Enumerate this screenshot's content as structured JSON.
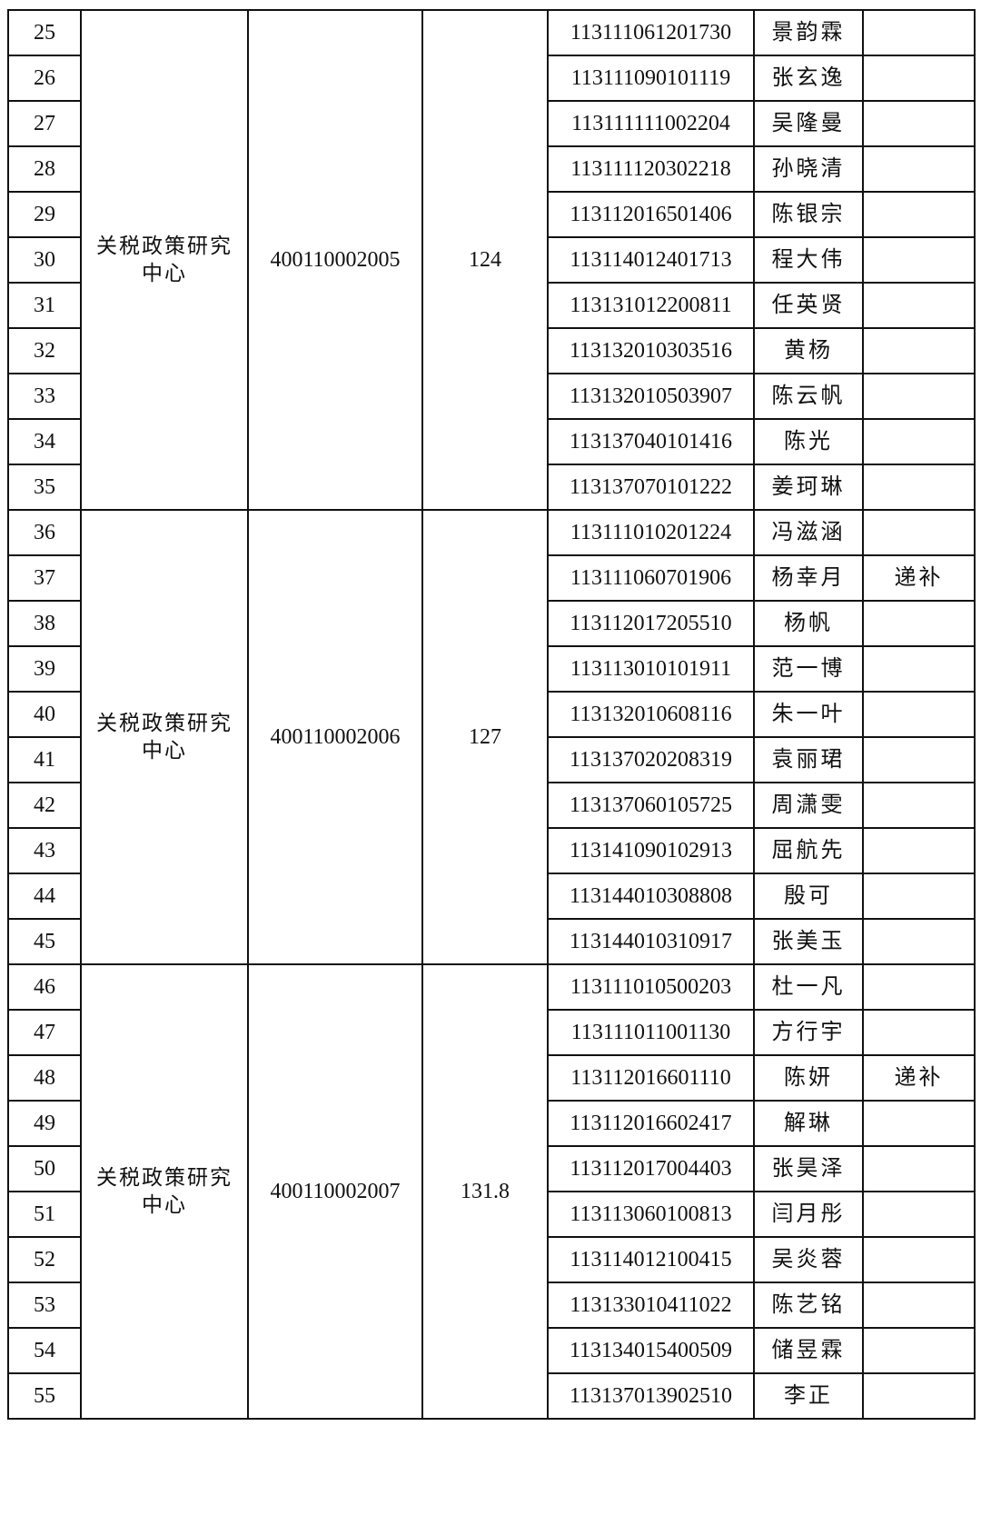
{
  "groups": [
    {
      "unit": "关税政策研究中心",
      "position_code": "400110002005",
      "score": "124",
      "rows": [
        {
          "no": "25",
          "id": "113111061201730",
          "name": "景韵霖",
          "note": ""
        },
        {
          "no": "26",
          "id": "113111090101119",
          "name": "张玄逸",
          "note": ""
        },
        {
          "no": "27",
          "id": "113111111002204",
          "name": "吴隆曼",
          "note": ""
        },
        {
          "no": "28",
          "id": "113111120302218",
          "name": "孙晓清",
          "note": ""
        },
        {
          "no": "29",
          "id": "113112016501406",
          "name": "陈银宗",
          "note": ""
        },
        {
          "no": "30",
          "id": "113114012401713",
          "name": "程大伟",
          "note": ""
        },
        {
          "no": "31",
          "id": "113131012200811",
          "name": "任英贤",
          "note": ""
        },
        {
          "no": "32",
          "id": "113132010303516",
          "name": "黄杨",
          "note": ""
        },
        {
          "no": "33",
          "id": "113132010503907",
          "name": "陈云帆",
          "note": ""
        },
        {
          "no": "34",
          "id": "113137040101416",
          "name": "陈光",
          "note": ""
        },
        {
          "no": "35",
          "id": "113137070101222",
          "name": "姜珂琳",
          "note": ""
        }
      ]
    },
    {
      "unit": "关税政策研究中心",
      "position_code": "400110002006",
      "score": "127",
      "rows": [
        {
          "no": "36",
          "id": "113111010201224",
          "name": "冯滋涵",
          "note": ""
        },
        {
          "no": "37",
          "id": "113111060701906",
          "name": "杨幸月",
          "note": "递补"
        },
        {
          "no": "38",
          "id": "113112017205510",
          "name": "杨帆",
          "note": ""
        },
        {
          "no": "39",
          "id": "113113010101911",
          "name": "范一博",
          "note": ""
        },
        {
          "no": "40",
          "id": "113132010608116",
          "name": "朱一叶",
          "note": ""
        },
        {
          "no": "41",
          "id": "113137020208319",
          "name": "袁丽珺",
          "note": ""
        },
        {
          "no": "42",
          "id": "113137060105725",
          "name": "周潇雯",
          "note": ""
        },
        {
          "no": "43",
          "id": "113141090102913",
          "name": "屈航先",
          "note": ""
        },
        {
          "no": "44",
          "id": "113144010308808",
          "name": "殷可",
          "note": ""
        },
        {
          "no": "45",
          "id": "113144010310917",
          "name": "张美玉",
          "note": ""
        }
      ]
    },
    {
      "unit": "关税政策研究中心",
      "position_code": "400110002007",
      "score": "131.8",
      "rows": [
        {
          "no": "46",
          "id": "113111010500203",
          "name": "杜一凡",
          "note": ""
        },
        {
          "no": "47",
          "id": "113111011001130",
          "name": "方行宇",
          "note": ""
        },
        {
          "no": "48",
          "id": "113112016601110",
          "name": "陈妍",
          "note": "递补"
        },
        {
          "no": "49",
          "id": "113112016602417",
          "name": "解琳",
          "note": ""
        },
        {
          "no": "50",
          "id": "113112017004403",
          "name": "张昊泽",
          "note": ""
        },
        {
          "no": "51",
          "id": "113113060100813",
          "name": "闫月彤",
          "note": ""
        },
        {
          "no": "52",
          "id": "113114012100415",
          "name": "吴炎蓉",
          "note": ""
        },
        {
          "no": "53",
          "id": "113133010411022",
          "name": "陈艺铭",
          "note": ""
        },
        {
          "no": "54",
          "id": "113134015400509",
          "name": "储昱霖",
          "note": ""
        },
        {
          "no": "55",
          "id": "113137013902510",
          "name": "李正",
          "note": ""
        }
      ]
    }
  ]
}
